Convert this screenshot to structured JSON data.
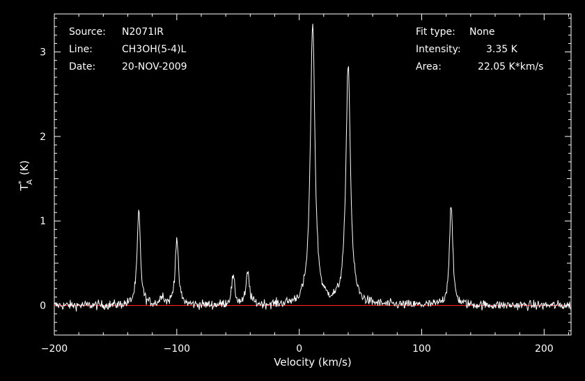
{
  "info": {
    "source_label": "Source:",
    "source_value": "N2071IR",
    "line_label": "Line:",
    "line_value": "CH3OH(5-4)L",
    "date_label": "Date:",
    "date_value": "20-NOV-2009",
    "fit_label": "Fit type:",
    "fit_value": "None",
    "intensity_label": "Intensity:",
    "intensity_value": "3.35 K",
    "area_label": "Area:",
    "area_value": "22.05 K*km/s"
  },
  "colors": {
    "background": "#000000",
    "spectrum": "#ffffff",
    "baseline": "#ff2020"
  },
  "chart_data": {
    "type": "line",
    "xlabel": "Velocity (km/s)",
    "ylabel_main": "T",
    "ylabel_sup": "*",
    "ylabel_sub": "A",
    "ylabel_unit": "(K)",
    "xlim": [
      -200,
      222
    ],
    "ylim": [
      -0.35,
      3.45
    ],
    "x_ticks": [
      -200,
      -100,
      0,
      100,
      200
    ],
    "x_tick_labels": [
      "−200",
      "−100",
      "0",
      "100",
      "200"
    ],
    "y_ticks": [
      0,
      1,
      2,
      3
    ],
    "y_tick_labels": [
      "0",
      "1",
      "2",
      "3"
    ],
    "baseline": 0,
    "noise_rms": 0.04,
    "peaks": [
      {
        "x": -131,
        "y": 1.12
      },
      {
        "x": -112,
        "y": 0.12
      },
      {
        "x": -100,
        "y": 0.8
      },
      {
        "x": -54,
        "y": 0.33
      },
      {
        "x": -42,
        "y": 0.38
      },
      {
        "x": 11,
        "y": 3.35
      },
      {
        "x": 40,
        "y": 2.85
      },
      {
        "x": 124,
        "y": 1.2
      }
    ]
  }
}
